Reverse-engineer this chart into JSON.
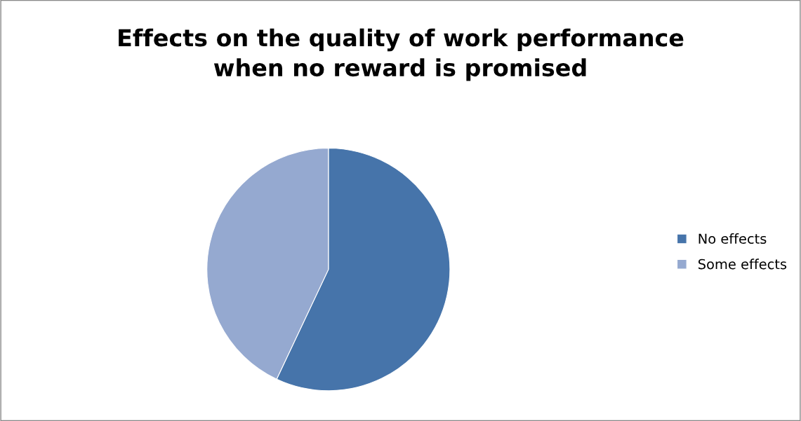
{
  "chart_data": {
    "type": "pie",
    "title": "Effects on the quality of work performance\nwhen no reward is promised",
    "categories": [
      "No effects",
      "Some effects"
    ],
    "values": [
      57,
      43
    ],
    "colors": [
      "#4674aa",
      "#95a9d0"
    ],
    "legend": "right"
  }
}
